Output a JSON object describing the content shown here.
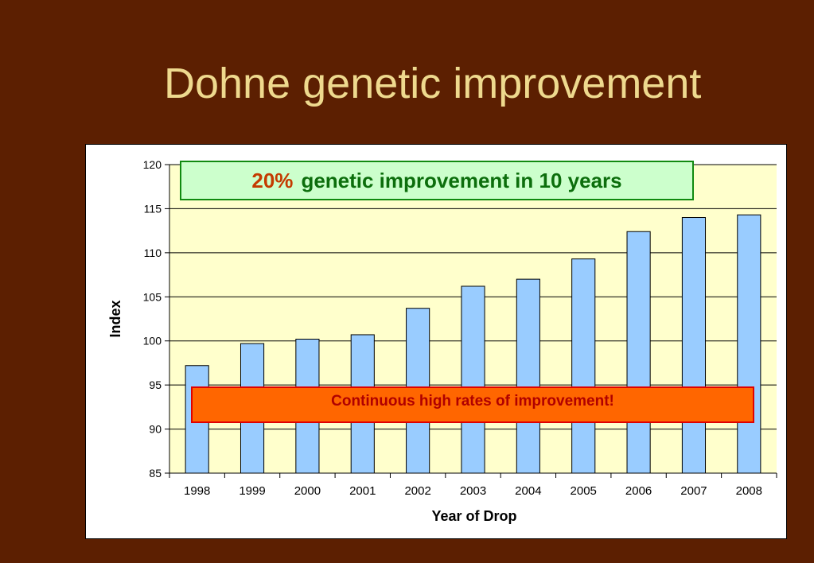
{
  "slide": {
    "title": "Dohne genetic improvement",
    "callout_top": {
      "highlight": "20%",
      "text": "genetic improvement in 10 years"
    },
    "callout_bottom": "Continuous high rates of improvement!"
  },
  "colors": {
    "background": "#5c1f01",
    "title": "#eed98e",
    "plot_area": "#ffffcc",
    "bar_fill": "#99ccff",
    "callout_top_fill": "#ccffcc",
    "callout_top_text": "#0c6e0c",
    "callout_top_highlight": "#c43a00",
    "callout_bottom_fill": "#ff6600",
    "callout_bottom_text": "#b00000"
  },
  "chart_data": {
    "type": "bar",
    "categories": [
      "1998",
      "1999",
      "2000",
      "2001",
      "2002",
      "2003",
      "2004",
      "2005",
      "2006",
      "2007",
      "2008"
    ],
    "values": [
      97.2,
      99.7,
      100.2,
      100.7,
      103.7,
      106.2,
      107.0,
      109.3,
      112.4,
      114.0,
      114.3
    ],
    "xlabel": "Year of Drop",
    "ylabel": "Index",
    "ylim": [
      85,
      120
    ],
    "yticks": [
      85,
      90,
      95,
      100,
      105,
      110,
      115,
      120
    ],
    "grid": true,
    "legend": "none"
  }
}
